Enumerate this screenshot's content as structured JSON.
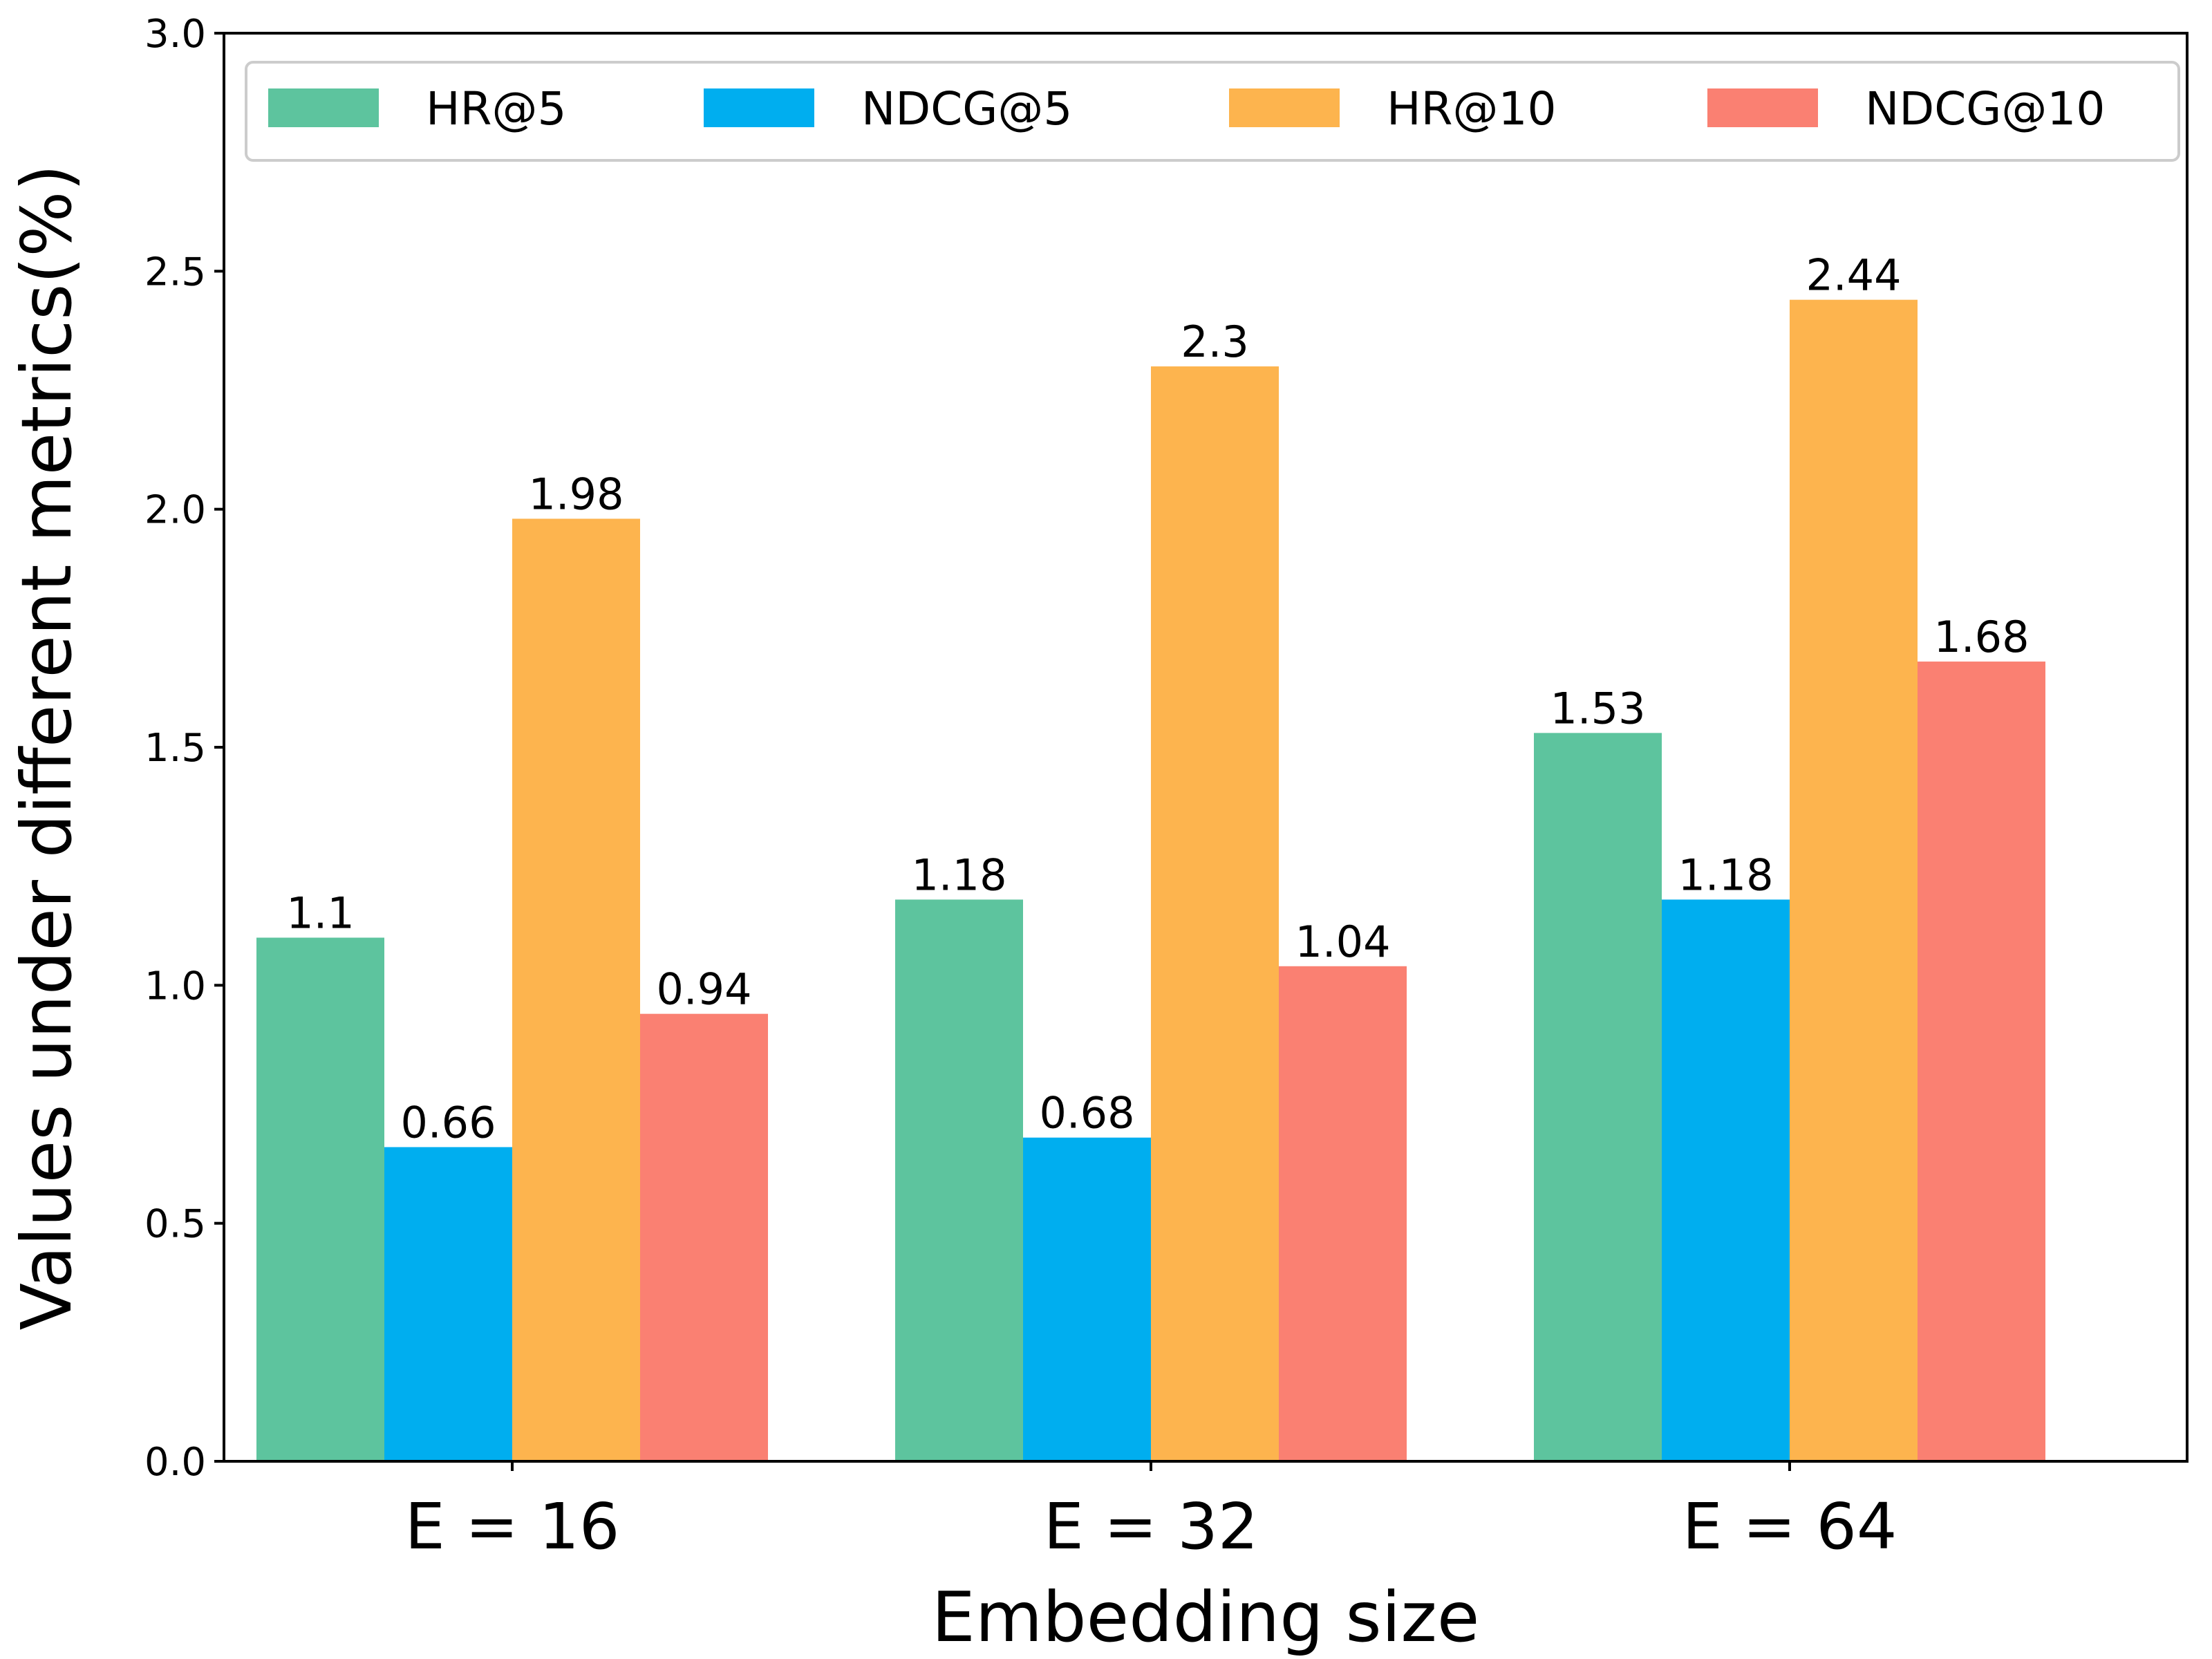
{
  "chart_data": {
    "type": "bar",
    "title": "",
    "xlabel": "Embedding size",
    "ylabel": "Values under different metrics(%)",
    "ylim": [
      0,
      3.0
    ],
    "yticks": [
      "0.0",
      "0.5",
      "1.0",
      "1.5",
      "2.0",
      "2.5",
      "3.0"
    ],
    "categories": [
      "E = 16",
      "E = 32",
      "E = 64"
    ],
    "series": [
      {
        "name": "HR@5",
        "color": "#5DC49E",
        "values": [
          1.1,
          1.18,
          1.53
        ],
        "labels": [
          "1.1",
          "1.18",
          "1.53"
        ]
      },
      {
        "name": "NDCG@5",
        "color": "#00AEEF",
        "values": [
          0.66,
          0.68,
          1.18
        ],
        "labels": [
          "0.66",
          "0.68",
          "1.18"
        ]
      },
      {
        "name": "HR@10",
        "color": "#FDB44E",
        "values": [
          1.98,
          2.3,
          2.44
        ],
        "labels": [
          "1.98",
          "2.3",
          "2.44"
        ]
      },
      {
        "name": "NDCG@10",
        "color": "#FA8072",
        "values": [
          0.94,
          1.04,
          1.68
        ],
        "labels": [
          "0.94",
          "1.04",
          "1.68"
        ]
      }
    ],
    "legend": {
      "position": "top",
      "columns": 4
    },
    "grid": false
  }
}
